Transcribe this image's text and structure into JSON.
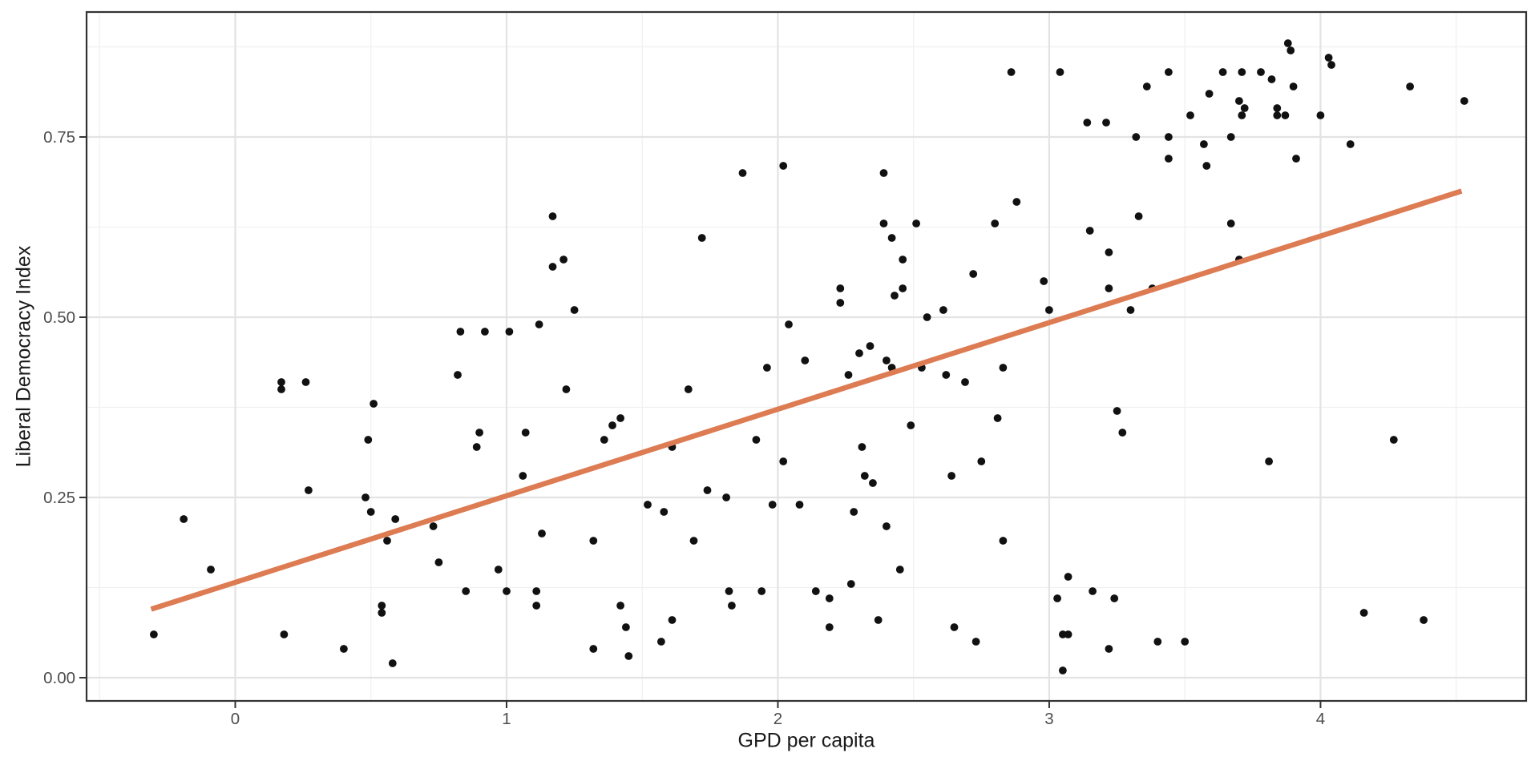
{
  "chart_data": {
    "type": "scatter",
    "title": "",
    "xlabel": "GPD per capita",
    "ylabel": "Liberal Democracy Index",
    "xlim": [
      -0.548,
      4.758
    ],
    "ylim": [
      -0.0322,
      0.9233
    ],
    "x_ticks": [
      0,
      1,
      2,
      3,
      4
    ],
    "x_tick_labels": [
      "0",
      "1",
      "2",
      "3",
      "4"
    ],
    "y_ticks": [
      0,
      0.25,
      0.5,
      0.75
    ],
    "y_tick_labels": [
      "0.00",
      "0.25",
      "0.50",
      "0.75"
    ],
    "x_minor_ticks": [
      -0.5,
      0.5,
      1.5,
      2.5,
      3.5,
      4.5
    ],
    "y_minor_ticks": [
      0.125,
      0.375,
      0.625,
      0.875
    ],
    "grid": true,
    "legend": false,
    "point_color": "#111111",
    "point_radius": 4.9,
    "trend_line": {
      "x1": -0.31,
      "y1": 0.095,
      "x2": 4.52,
      "y2": 0.675,
      "color": "#DD7B53",
      "width": 6.5
    },
    "points": [
      [
        3.88,
        0.88
      ],
      [
        3.89,
        0.87
      ],
      [
        4.03,
        0.86
      ],
      [
        4.04,
        0.85
      ],
      [
        2.86,
        0.84
      ],
      [
        3.04,
        0.84
      ],
      [
        3.44,
        0.84
      ],
      [
        3.64,
        0.84
      ],
      [
        3.71,
        0.84
      ],
      [
        3.78,
        0.84
      ],
      [
        3.82,
        0.83
      ],
      [
        3.36,
        0.82
      ],
      [
        3.9,
        0.82
      ],
      [
        4.33,
        0.82
      ],
      [
        3.59,
        0.81
      ],
      [
        3.7,
        0.8
      ],
      [
        4.53,
        0.8
      ],
      [
        3.72,
        0.79
      ],
      [
        3.84,
        0.79
      ],
      [
        3.52,
        0.78
      ],
      [
        3.71,
        0.78
      ],
      [
        3.84,
        0.78
      ],
      [
        3.87,
        0.78
      ],
      [
        4.0,
        0.78
      ],
      [
        3.14,
        0.77
      ],
      [
        3.21,
        0.77
      ],
      [
        3.32,
        0.75
      ],
      [
        3.44,
        0.75
      ],
      [
        3.67,
        0.75
      ],
      [
        3.57,
        0.74
      ],
      [
        4.11,
        0.74
      ],
      [
        3.44,
        0.72
      ],
      [
        3.91,
        0.72
      ],
      [
        3.58,
        0.71
      ],
      [
        1.87,
        0.7
      ],
      [
        2.02,
        0.71
      ],
      [
        2.39,
        0.7
      ],
      [
        2.88,
        0.66
      ],
      [
        3.33,
        0.64
      ],
      [
        1.17,
        0.64
      ],
      [
        2.39,
        0.63
      ],
      [
        2.51,
        0.63
      ],
      [
        2.8,
        0.63
      ],
      [
        3.67,
        0.63
      ],
      [
        3.15,
        0.62
      ],
      [
        1.72,
        0.61
      ],
      [
        2.42,
        0.61
      ],
      [
        3.22,
        0.59
      ],
      [
        1.21,
        0.58
      ],
      [
        2.46,
        0.58
      ],
      [
        3.7,
        0.58
      ],
      [
        1.17,
        0.57
      ],
      [
        2.72,
        0.56
      ],
      [
        2.98,
        0.55
      ],
      [
        2.23,
        0.54
      ],
      [
        2.46,
        0.54
      ],
      [
        3.22,
        0.54
      ],
      [
        3.38,
        0.54
      ],
      [
        2.43,
        0.53
      ],
      [
        2.23,
        0.52
      ],
      [
        1.25,
        0.51
      ],
      [
        2.61,
        0.51
      ],
      [
        3.0,
        0.51
      ],
      [
        3.3,
        0.51
      ],
      [
        2.55,
        0.5
      ],
      [
        1.12,
        0.49
      ],
      [
        2.04,
        0.49
      ],
      [
        0.83,
        0.48
      ],
      [
        0.92,
        0.48
      ],
      [
        1.01,
        0.48
      ],
      [
        2.34,
        0.46
      ],
      [
        2.3,
        0.45
      ],
      [
        2.1,
        0.44
      ],
      [
        2.4,
        0.44
      ],
      [
        2.42,
        0.43
      ],
      [
        2.53,
        0.43
      ],
      [
        2.83,
        0.43
      ],
      [
        1.96,
        0.43
      ],
      [
        0.82,
        0.42
      ],
      [
        2.26,
        0.42
      ],
      [
        2.62,
        0.42
      ],
      [
        0.17,
        0.41
      ],
      [
        0.26,
        0.41
      ],
      [
        2.69,
        0.41
      ],
      [
        0.17,
        0.4
      ],
      [
        1.22,
        0.4
      ],
      [
        1.67,
        0.4
      ],
      [
        0.51,
        0.38
      ],
      [
        3.25,
        0.37
      ],
      [
        1.42,
        0.36
      ],
      [
        2.81,
        0.36
      ],
      [
        1.39,
        0.35
      ],
      [
        2.49,
        0.35
      ],
      [
        0.9,
        0.34
      ],
      [
        1.07,
        0.34
      ],
      [
        3.27,
        0.34
      ],
      [
        0.49,
        0.33
      ],
      [
        1.36,
        0.33
      ],
      [
        1.92,
        0.33
      ],
      [
        4.27,
        0.33
      ],
      [
        0.89,
        0.32
      ],
      [
        1.61,
        0.32
      ],
      [
        2.31,
        0.32
      ],
      [
        2.02,
        0.3
      ],
      [
        2.75,
        0.3
      ],
      [
        3.81,
        0.3
      ],
      [
        2.64,
        0.28
      ],
      [
        1.06,
        0.28
      ],
      [
        2.32,
        0.28
      ],
      [
        2.35,
        0.27
      ],
      [
        0.27,
        0.26
      ],
      [
        1.74,
        0.26
      ],
      [
        0.48,
        0.25
      ],
      [
        1.81,
        0.25
      ],
      [
        1.52,
        0.24
      ],
      [
        1.98,
        0.24
      ],
      [
        2.08,
        0.24
      ],
      [
        -0.19,
        0.22
      ],
      [
        0.5,
        0.23
      ],
      [
        1.58,
        0.23
      ],
      [
        2.28,
        0.23
      ],
      [
        0.59,
        0.22
      ],
      [
        0.73,
        0.21
      ],
      [
        2.4,
        0.21
      ],
      [
        1.13,
        0.2
      ],
      [
        0.56,
        0.19
      ],
      [
        1.32,
        0.19
      ],
      [
        1.69,
        0.19
      ],
      [
        2.83,
        0.19
      ],
      [
        0.75,
        0.16
      ],
      [
        -0.09,
        0.15
      ],
      [
        0.97,
        0.15
      ],
      [
        2.45,
        0.15
      ],
      [
        3.07,
        0.14
      ],
      [
        2.27,
        0.13
      ],
      [
        0.85,
        0.12
      ],
      [
        1.0,
        0.12
      ],
      [
        1.11,
        0.12
      ],
      [
        1.82,
        0.12
      ],
      [
        1.94,
        0.12
      ],
      [
        2.14,
        0.12
      ],
      [
        3.16,
        0.12
      ],
      [
        2.19,
        0.11
      ],
      [
        3.03,
        0.11
      ],
      [
        3.24,
        0.11
      ],
      [
        0.54,
        0.1
      ],
      [
        1.11,
        0.1
      ],
      [
        1.42,
        0.1
      ],
      [
        1.83,
        0.1
      ],
      [
        0.54,
        0.09
      ],
      [
        4.16,
        0.09
      ],
      [
        1.61,
        0.08
      ],
      [
        2.37,
        0.08
      ],
      [
        4.38,
        0.08
      ],
      [
        1.44,
        0.07
      ],
      [
        2.19,
        0.07
      ],
      [
        2.65,
        0.07
      ],
      [
        -0.3,
        0.06
      ],
      [
        0.18,
        0.06
      ],
      [
        3.05,
        0.06
      ],
      [
        3.07,
        0.06
      ],
      [
        1.57,
        0.05
      ],
      [
        2.73,
        0.05
      ],
      [
        3.4,
        0.05
      ],
      [
        3.5,
        0.05
      ],
      [
        0.4,
        0.04
      ],
      [
        1.32,
        0.04
      ],
      [
        3.22,
        0.04
      ],
      [
        1.45,
        0.03
      ],
      [
        0.58,
        0.02
      ],
      [
        3.05,
        0.01
      ]
    ]
  },
  "style": {
    "panel_background": "#ffffff",
    "panel_border_color": "#333333",
    "major_grid_color": "#e3e3e3",
    "minor_grid_color": "#f0f0f0",
    "tick_mark_color": "#333333",
    "tick_label_color": "#4d4d4d"
  }
}
